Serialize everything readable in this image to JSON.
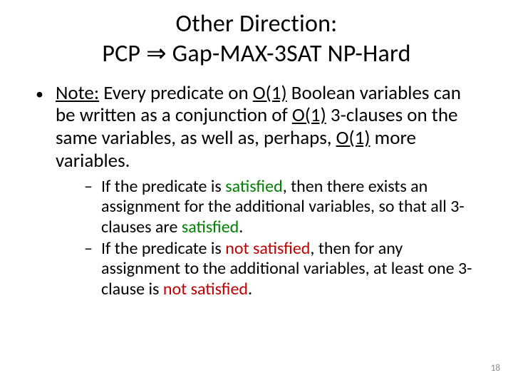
{
  "colors": {
    "black": "#000000",
    "red": "#c00000",
    "green": "#008000",
    "blue": "#0000c8",
    "gray": "#8c8c8c",
    "background": "#ffffff"
  },
  "typography": {
    "title_fontsize": 34,
    "lvl1_fontsize": 27,
    "lvl2_fontsize": 24,
    "pagenum_fontsize": 13,
    "font_family": "Calibri"
  },
  "title": {
    "line1": "Other Direction:",
    "line2_a": "PCP ",
    "line2_arrow": "⇒",
    "line2_b": " Gap-MAX-3SAT NP-Hard"
  },
  "bullet": {
    "glyph": "•",
    "note_label": "Note:",
    "t1": " Every predicate on ",
    "o1": "O(1)",
    "t2": " Boolean variables can be written as a conjunction of ",
    "o2": "O(1)",
    "t3": " 3-clauses on the same variables, as well as, perhaps, ",
    "o3": "O(1)",
    "t4": " more variables."
  },
  "sub": {
    "dash": "–",
    "item1": {
      "a": "If the predicate is ",
      "sat": "satisfied",
      "b": ", then there exists an assignment for the additional variables, so that all 3-clauses are ",
      "sat2": "satisfied",
      "c": "."
    },
    "item2": {
      "a": "If the predicate is ",
      "notsat": "not satisfied",
      "b": ", then for any assignment to the additional variables, at least one 3-clause is ",
      "notsat2": "not satisfied",
      "c": "."
    }
  },
  "page_number": "18"
}
